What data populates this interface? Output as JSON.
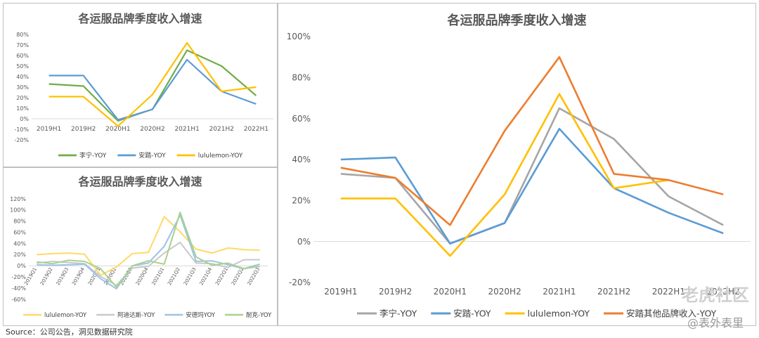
{
  "source": "Source：公司公告，洞见数据研究院",
  "watermark": {
    "tiger": "老虎社区",
    "brand": "@表外表里"
  },
  "colors": {
    "grey": "#a5a5a5",
    "blue": "#5b9bd5",
    "yellow": "#ffc000",
    "orange": "#ed7d31",
    "green": "#70ad47"
  },
  "chart_data": [
    {
      "type": "line",
      "title": "各运服品牌季度收入增速",
      "categories": [
        "2019H1",
        "2019H2",
        "2020H1",
        "2020H2",
        "2021H1",
        "2021H2",
        "2022H1"
      ],
      "yticks": [
        "80%",
        "70%",
        "60%",
        "50%",
        "40%",
        "30%",
        "20%",
        "10%",
        "0%",
        "-10%",
        "-20%"
      ],
      "ylim": [
        -20,
        80
      ],
      "series": [
        {
          "name": "李宁-YOY",
          "color": "#70ad47",
          "values": [
            33,
            31,
            -2,
            9,
            65,
            50,
            22
          ]
        },
        {
          "name": "安踏-YOY",
          "color": "#5b9bd5",
          "values": [
            41,
            41,
            -1,
            9,
            56,
            26,
            14
          ]
        },
        {
          "name": "lululemon-YOY",
          "color": "#ffc000",
          "values": [
            21,
            21,
            -7,
            23,
            72,
            26,
            30
          ]
        }
      ],
      "legend": "bottom"
    },
    {
      "type": "line",
      "title": "各运服品牌季度收入增速",
      "categories": [
        "2019Q1",
        "2019Q2",
        "2019Q3",
        "2019Q4",
        "2020Q1",
        "2020Q2",
        "2020Q3",
        "2020Q4",
        "2021Q1",
        "2021Q2",
        "2021Q3",
        "2021Q4",
        "2022Q1",
        "2022Q2",
        "2022Q3"
      ],
      "yticks": [
        "120%",
        "100%",
        "80%",
        "60%",
        "40%",
        "20%",
        "0%",
        "-20%",
        "-40%",
        "-60%"
      ],
      "ylim": [
        -60,
        120
      ],
      "series": [
        {
          "name": "lululemon-YOY",
          "color": "#ffd966",
          "values": [
            20,
            22,
            23,
            21,
            -17,
            -2,
            22,
            24,
            88,
            61,
            30,
            23,
            32,
            29,
            28
          ]
        },
        {
          "name": "阿迪达斯-YOY",
          "color": "#c9c9c9",
          "values": [
            5,
            8,
            6,
            4,
            -19,
            -35,
            -4,
            -1,
            23,
            42,
            5,
            4,
            -3,
            11,
            11
          ]
        },
        {
          "name": "安德玛YOY",
          "color": "#9dc3e6",
          "values": [
            2,
            1,
            2,
            3,
            -23,
            -41,
            0,
            5,
            35,
            91,
            8,
            9,
            2,
            -5,
            3
          ]
        },
        {
          "name": "耐克-YOY",
          "color": "#a9d18e",
          "values": [
            7,
            4,
            10,
            8,
            -5,
            -38,
            0,
            9,
            3,
            96,
            16,
            1,
            5,
            -5,
            -1
          ]
        }
      ],
      "legend": "bottom"
    },
    {
      "type": "line",
      "title": "各运服品牌季度收入增速",
      "categories": [
        "2019H1",
        "2019H2",
        "2020H1",
        "2020H2",
        "2021H1",
        "2021H2",
        "2022H1",
        "2022H2"
      ],
      "yticks": [
        "100%",
        "80%",
        "60%",
        "40%",
        "20%",
        "0%",
        "-20%"
      ],
      "ylim": [
        -20,
        100
      ],
      "series": [
        {
          "name": "李宁-YOY",
          "color": "#a5a5a5",
          "values": [
            33,
            31,
            -1,
            9,
            65,
            50,
            22,
            8
          ]
        },
        {
          "name": "安踏-YOY",
          "color": "#5b9bd5",
          "values": [
            40,
            41,
            -1,
            9,
            55,
            26,
            14,
            4
          ]
        },
        {
          "name": "lululemon-YOY",
          "color": "#ffc000",
          "values": [
            21,
            21,
            -7,
            23,
            72,
            26,
            30,
            null
          ]
        },
        {
          "name": "安踏其他品牌收入-YOY",
          "color": "#ed7d31",
          "values": [
            36,
            31,
            8,
            54,
            90,
            33,
            30,
            23
          ]
        }
      ],
      "legend": "bottom"
    }
  ]
}
